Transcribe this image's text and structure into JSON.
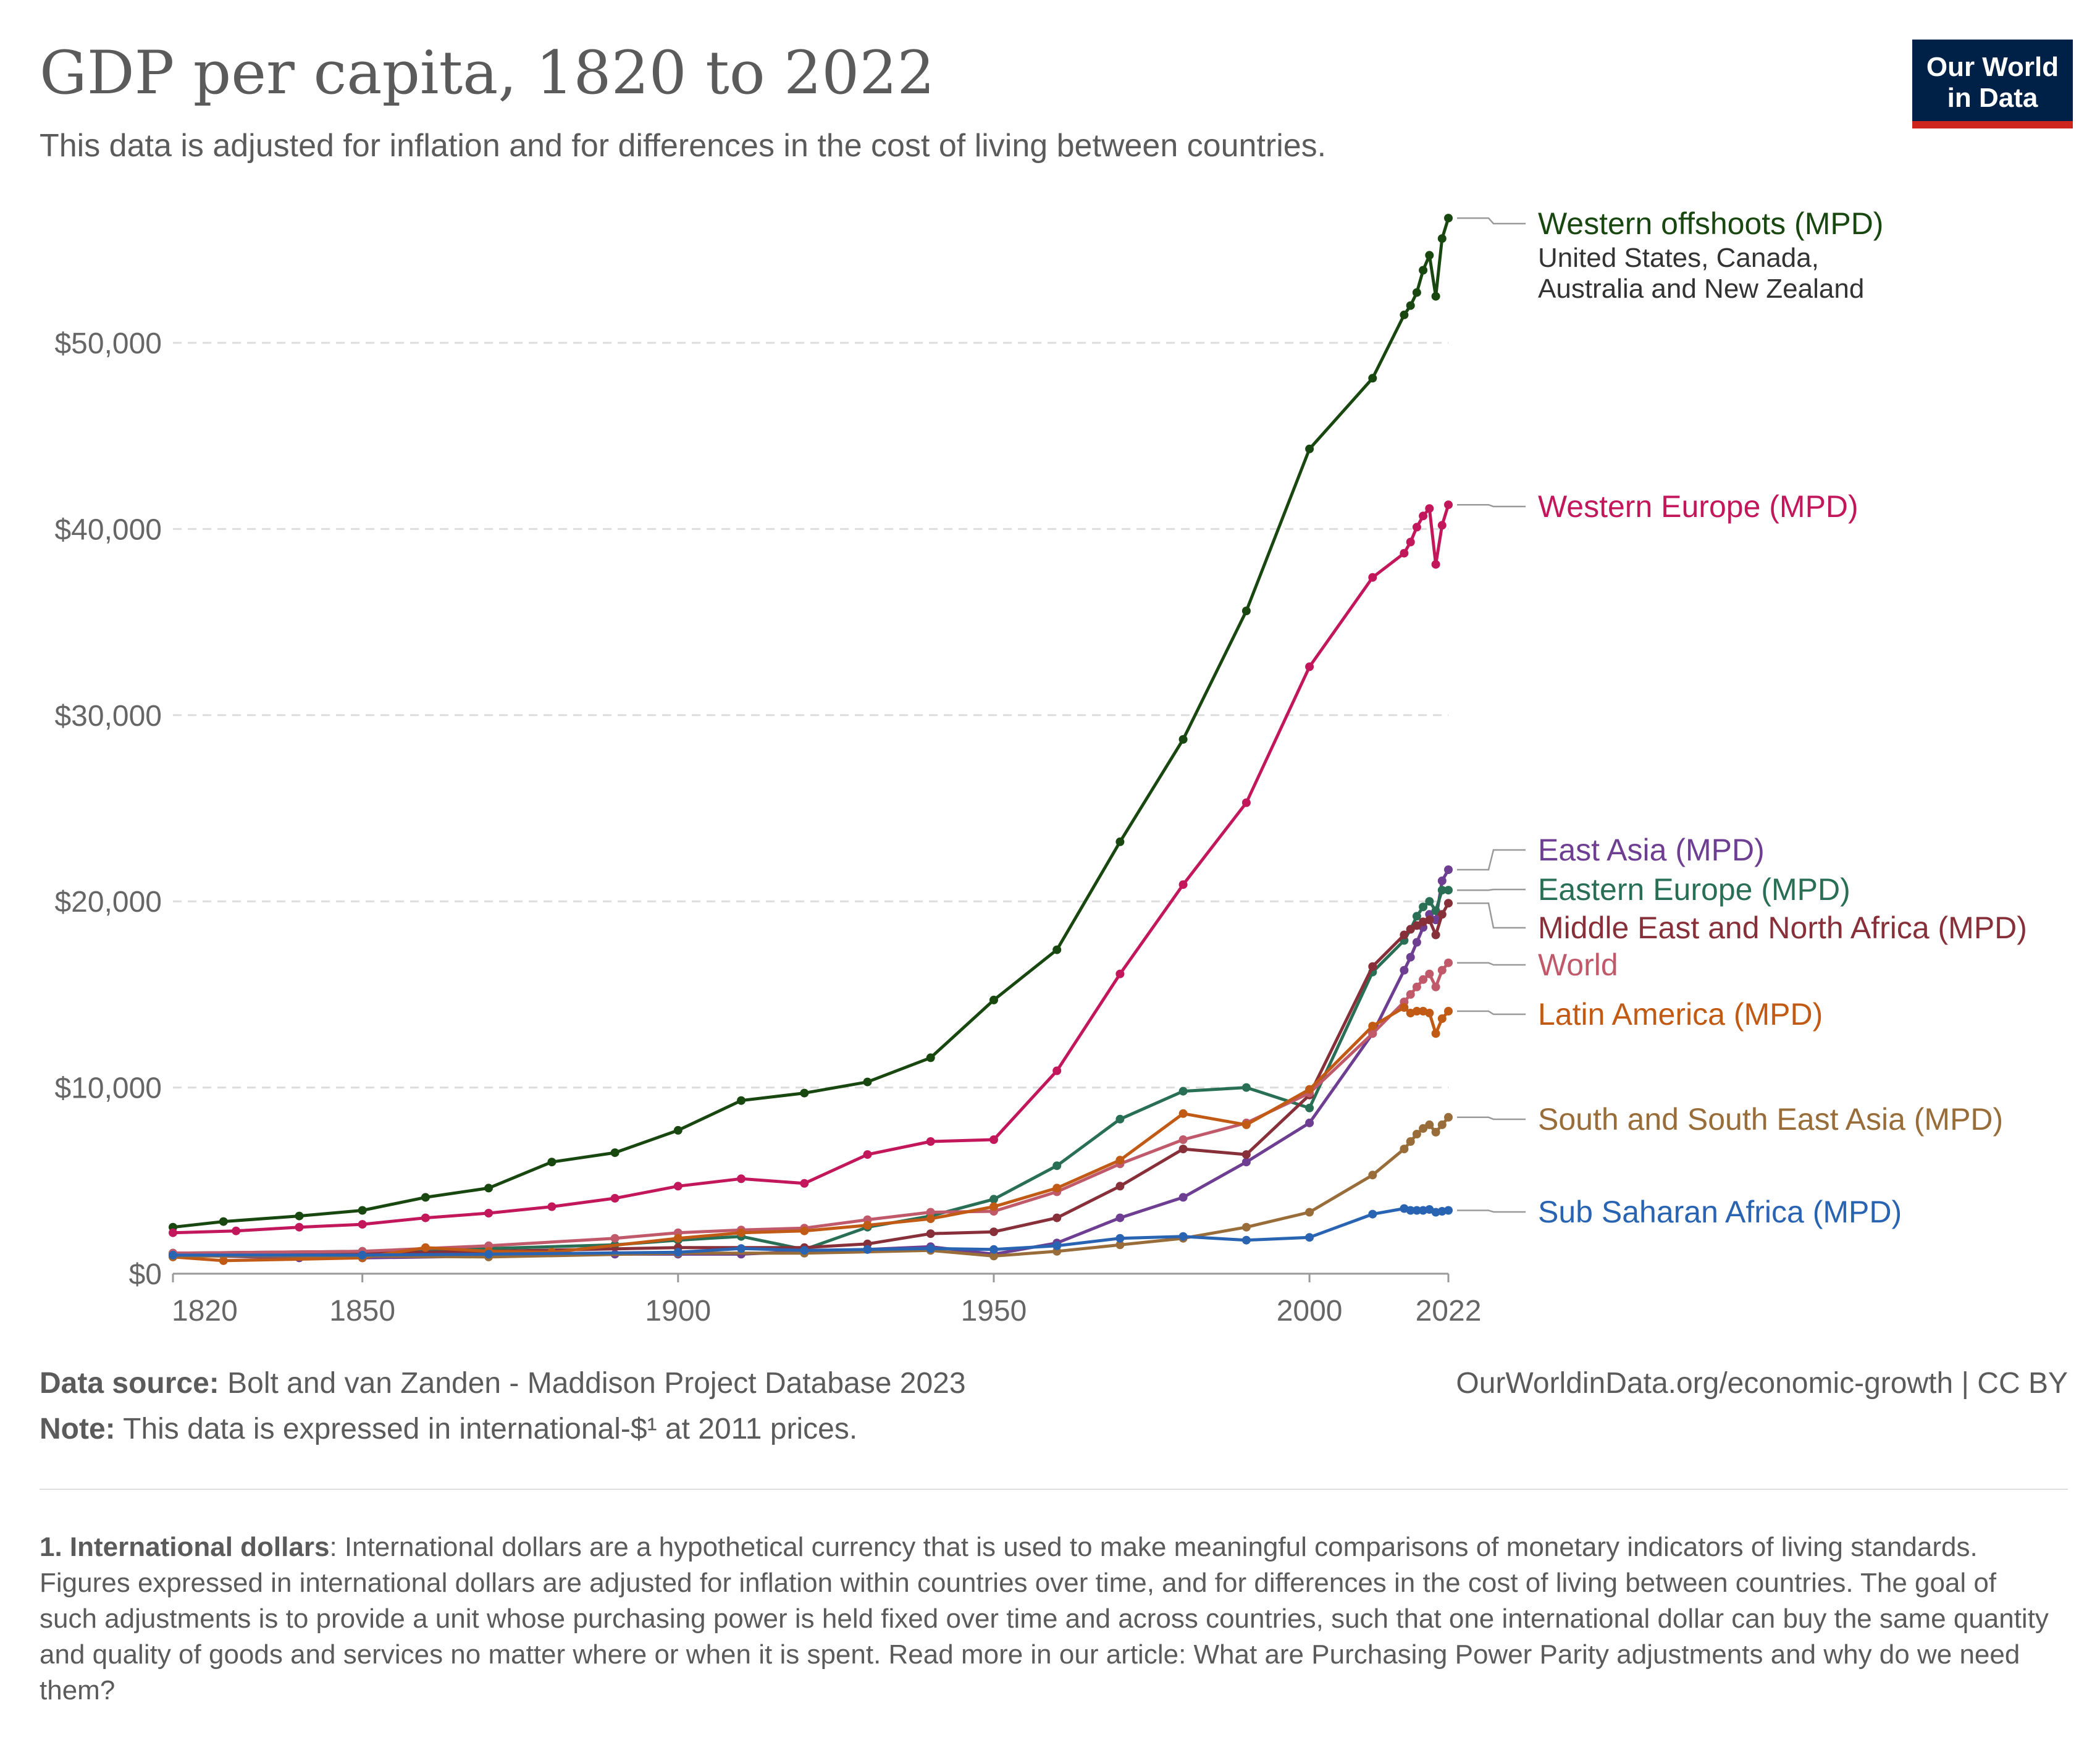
{
  "header": {
    "title": "GDP per capita, 1820 to 2022",
    "subtitle": "This data is adjusted for inflation and for differences in the cost of living between countries.",
    "logo_line1": "Our World",
    "logo_line2": "in Data"
  },
  "footer": {
    "source_label": "Data source:",
    "source_text": " Bolt and van Zanden - Maddison Project Database 2023",
    "note_label": "Note:",
    "note_text": " This data is expressed in international-$¹ at 2011 prices.",
    "url": "OurWorldinData.org/economic-growth | CC BY",
    "footnote_label": "1. International dollars",
    "footnote_text": ": International dollars are a hypothetical currency that is used to make meaningful comparisons of monetary indicators of living standards. Figures expressed in international dollars are adjusted for inflation within countries over time, and for differences in the cost of living between countries. The goal of such adjustments is to provide a unit whose purchasing power is held fixed over time and across countries, such that one international dollar can buy the same quantity and quality of goods and services no matter where or when it is spent. Read more in our article: What are Purchasing Power Parity adjustments and why do we need them?"
  },
  "chart_data": {
    "type": "line",
    "title": "GDP per capita, 1820 to 2022",
    "xlabel": "",
    "ylabel": "",
    "xlim": [
      1820,
      2022
    ],
    "ylim": [
      0,
      57000
    ],
    "x_ticks": [
      1820,
      1850,
      1900,
      1950,
      2000,
      2022
    ],
    "y_ticks": [
      {
        "value": 0,
        "label": "$0"
      },
      {
        "value": 10000,
        "label": "$10,000"
      },
      {
        "value": 20000,
        "label": "$20,000"
      },
      {
        "value": 30000,
        "label": "$30,000"
      },
      {
        "value": 40000,
        "label": "$40,000"
      },
      {
        "value": 50000,
        "label": "$50,000"
      }
    ],
    "grid": true,
    "legend": "right",
    "series": [
      {
        "name": "Western offshoots (MPD)",
        "note": "United States, Canada, Australia and New Zealand",
        "color": "#18470f",
        "points": [
          [
            1820,
            2500
          ],
          [
            1828,
            2800
          ],
          [
            1840,
            3100
          ],
          [
            1850,
            3400
          ],
          [
            1860,
            4100
          ],
          [
            1870,
            4600
          ],
          [
            1880,
            6000
          ],
          [
            1890,
            6500
          ],
          [
            1900,
            7700
          ],
          [
            1910,
            9300
          ],
          [
            1920,
            9700
          ],
          [
            1930,
            10300
          ],
          [
            1940,
            11600
          ],
          [
            1950,
            14700
          ],
          [
            1960,
            17400
          ],
          [
            1970,
            23200
          ],
          [
            1980,
            28700
          ],
          [
            1990,
            35600
          ],
          [
            2000,
            44300
          ],
          [
            2010,
            48100
          ],
          [
            2015,
            51500
          ],
          [
            2016,
            52000
          ],
          [
            2017,
            52700
          ],
          [
            2018,
            53900
          ],
          [
            2019,
            54700
          ],
          [
            2020,
            52500
          ],
          [
            2021,
            55600
          ],
          [
            2022,
            56700
          ]
        ]
      },
      {
        "name": "Western Europe (MPD)",
        "color": "#c2185b",
        "points": [
          [
            1820,
            2200
          ],
          [
            1830,
            2300
          ],
          [
            1840,
            2500
          ],
          [
            1850,
            2650
          ],
          [
            1860,
            3000
          ],
          [
            1870,
            3250
          ],
          [
            1880,
            3600
          ],
          [
            1890,
            4050
          ],
          [
            1900,
            4700
          ],
          [
            1910,
            5100
          ],
          [
            1920,
            4850
          ],
          [
            1930,
            6400
          ],
          [
            1940,
            7100
          ],
          [
            1950,
            7200
          ],
          [
            1960,
            10900
          ],
          [
            1970,
            16100
          ],
          [
            1980,
            20900
          ],
          [
            1990,
            25300
          ],
          [
            2000,
            32600
          ],
          [
            2010,
            37400
          ],
          [
            2015,
            38700
          ],
          [
            2016,
            39300
          ],
          [
            2017,
            40100
          ],
          [
            2018,
            40700
          ],
          [
            2019,
            41100
          ],
          [
            2020,
            38100
          ],
          [
            2021,
            40200
          ],
          [
            2022,
            41300
          ]
        ]
      },
      {
        "name": "East Asia (MPD)",
        "color": "#6d3e91",
        "points": [
          [
            1820,
            1000
          ],
          [
            1840,
            850
          ],
          [
            1850,
            850
          ],
          [
            1870,
            950
          ],
          [
            1890,
            1050
          ],
          [
            1900,
            1050
          ],
          [
            1910,
            1050
          ],
          [
            1920,
            1200
          ],
          [
            1930,
            1300
          ],
          [
            1940,
            1450
          ],
          [
            1950,
            1050
          ],
          [
            1960,
            1650
          ],
          [
            1970,
            3000
          ],
          [
            1980,
            4100
          ],
          [
            1990,
            6000
          ],
          [
            2000,
            8100
          ],
          [
            2010,
            12900
          ],
          [
            2015,
            16300
          ],
          [
            2016,
            17000
          ],
          [
            2017,
            17800
          ],
          [
            2018,
            18600
          ],
          [
            2019,
            19300
          ],
          [
            2020,
            19000
          ],
          [
            2021,
            21100
          ],
          [
            2022,
            21700
          ]
        ]
      },
      {
        "name": "Eastern Europe (MPD)",
        "color": "#286f55",
        "points": [
          [
            1820,
            1100
          ],
          [
            1850,
            1200
          ],
          [
            1870,
            1350
          ],
          [
            1890,
            1550
          ],
          [
            1900,
            1800
          ],
          [
            1910,
            2000
          ],
          [
            1920,
            1300
          ],
          [
            1930,
            2500
          ],
          [
            1940,
            3100
          ],
          [
            1950,
            4000
          ],
          [
            1960,
            5800
          ],
          [
            1970,
            8300
          ],
          [
            1980,
            9800
          ],
          [
            1990,
            10000
          ],
          [
            2000,
            8900
          ],
          [
            2010,
            16200
          ],
          [
            2015,
            17900
          ],
          [
            2016,
            18500
          ],
          [
            2017,
            19200
          ],
          [
            2018,
            19700
          ],
          [
            2019,
            20000
          ],
          [
            2020,
            19500
          ],
          [
            2021,
            20600
          ],
          [
            2022,
            20600
          ]
        ]
      },
      {
        "name": "Middle East and North Africa (MPD)",
        "color": "#883039",
        "points": [
          [
            1820,
            1100
          ],
          [
            1850,
            1100
          ],
          [
            1870,
            1200
          ],
          [
            1900,
            1400
          ],
          [
            1920,
            1400
          ],
          [
            1930,
            1600
          ],
          [
            1940,
            2150
          ],
          [
            1950,
            2250
          ],
          [
            1960,
            3000
          ],
          [
            1970,
            4700
          ],
          [
            1980,
            6700
          ],
          [
            1990,
            6400
          ],
          [
            2000,
            9600
          ],
          [
            2010,
            16500
          ],
          [
            2015,
            18200
          ],
          [
            2016,
            18500
          ],
          [
            2017,
            18700
          ],
          [
            2018,
            18900
          ],
          [
            2019,
            19000
          ],
          [
            2020,
            18200
          ],
          [
            2021,
            19300
          ],
          [
            2022,
            19900
          ]
        ]
      },
      {
        "name": "World",
        "color": "#c05a6b",
        "points": [
          [
            1820,
            1100
          ],
          [
            1850,
            1200
          ],
          [
            1870,
            1500
          ],
          [
            1890,
            1900
          ],
          [
            1900,
            2200
          ],
          [
            1910,
            2350
          ],
          [
            1920,
            2450
          ],
          [
            1930,
            2900
          ],
          [
            1940,
            3300
          ],
          [
            1950,
            3350
          ],
          [
            1960,
            4400
          ],
          [
            1970,
            5900
          ],
          [
            1980,
            7200
          ],
          [
            1990,
            8100
          ],
          [
            2000,
            9700
          ],
          [
            2010,
            12900
          ],
          [
            2015,
            14600
          ],
          [
            2016,
            15000
          ],
          [
            2017,
            15400
          ],
          [
            2018,
            15800
          ],
          [
            2019,
            16100
          ],
          [
            2020,
            15400
          ],
          [
            2021,
            16300
          ],
          [
            2022,
            16700
          ]
        ]
      },
      {
        "name": "Latin America (MPD)",
        "color": "#c15a14",
        "points": [
          [
            1820,
            900
          ],
          [
            1828,
            700
          ],
          [
            1850,
            850
          ],
          [
            1860,
            1400
          ],
          [
            1870,
            1200
          ],
          [
            1880,
            1150
          ],
          [
            1900,
            1900
          ],
          [
            1910,
            2200
          ],
          [
            1920,
            2300
          ],
          [
            1930,
            2600
          ],
          [
            1940,
            2950
          ],
          [
            1950,
            3600
          ],
          [
            1960,
            4600
          ],
          [
            1970,
            6100
          ],
          [
            1980,
            8600
          ],
          [
            1990,
            8000
          ],
          [
            2000,
            9900
          ],
          [
            2010,
            13300
          ],
          [
            2015,
            14300
          ],
          [
            2016,
            14000
          ],
          [
            2017,
            14100
          ],
          [
            2018,
            14100
          ],
          [
            2019,
            14000
          ],
          [
            2020,
            12900
          ],
          [
            2021,
            13700
          ],
          [
            2022,
            14100
          ]
        ]
      },
      {
        "name": "South and South East Asia (MPD)",
        "color": "#996d39",
        "points": [
          [
            1820,
            950
          ],
          [
            1850,
            950
          ],
          [
            1870,
            900
          ],
          [
            1900,
            1100
          ],
          [
            1920,
            1100
          ],
          [
            1940,
            1250
          ],
          [
            1950,
            950
          ],
          [
            1960,
            1200
          ],
          [
            1970,
            1550
          ],
          [
            1980,
            1900
          ],
          [
            1990,
            2500
          ],
          [
            2000,
            3300
          ],
          [
            2010,
            5300
          ],
          [
            2015,
            6700
          ],
          [
            2016,
            7100
          ],
          [
            2017,
            7500
          ],
          [
            2018,
            7800
          ],
          [
            2019,
            8000
          ],
          [
            2020,
            7600
          ],
          [
            2021,
            8000
          ],
          [
            2022,
            8400
          ]
        ]
      },
      {
        "name": "Sub Saharan Africa (MPD)",
        "color": "#2964b3",
        "points": [
          [
            1820,
            1000
          ],
          [
            1850,
            1000
          ],
          [
            1870,
            1050
          ],
          [
            1900,
            1150
          ],
          [
            1910,
            1350
          ],
          [
            1920,
            1250
          ],
          [
            1930,
            1300
          ],
          [
            1940,
            1350
          ],
          [
            1950,
            1300
          ],
          [
            1960,
            1500
          ],
          [
            1970,
            1900
          ],
          [
            1980,
            2000
          ],
          [
            1990,
            1800
          ],
          [
            2000,
            1950
          ],
          [
            2010,
            3200
          ],
          [
            2015,
            3500
          ],
          [
            2016,
            3400
          ],
          [
            2017,
            3400
          ],
          [
            2018,
            3400
          ],
          [
            2019,
            3450
          ],
          [
            2020,
            3300
          ],
          [
            2021,
            3350
          ],
          [
            2022,
            3400
          ]
        ]
      }
    ]
  }
}
